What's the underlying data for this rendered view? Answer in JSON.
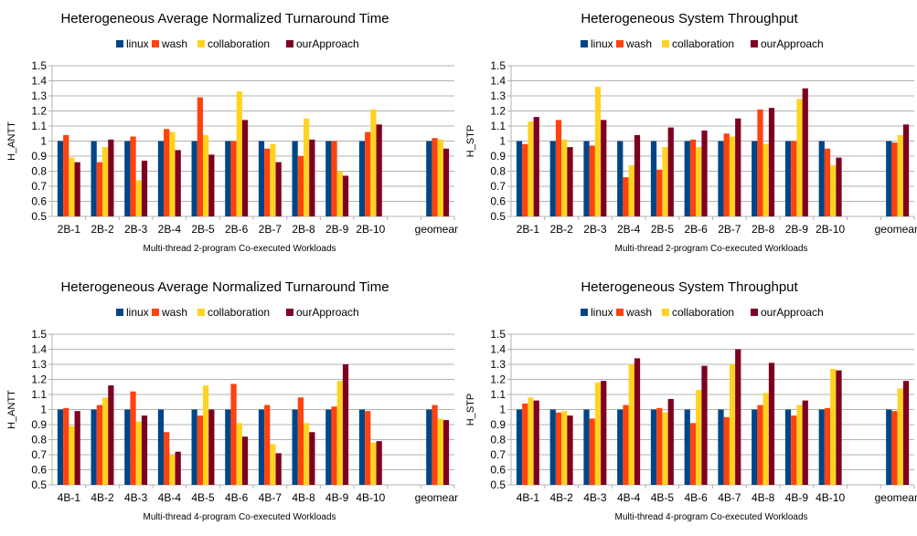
{
  "colors": {
    "linux": "#004586",
    "wash": "#ff420e",
    "collaboration": "#ffd320",
    "ourApproach": "#7e0021",
    "grid": "#b3b3b3",
    "axis": "#b3b3b3"
  },
  "chart_data": [
    {
      "type": "bar",
      "title": "Heterogeneous Average Normalized Turnaround Time",
      "xlabel": "Multi-thread 2-program Co-executed Workloads",
      "ylabel": "H_ANTT",
      "ylim": [
        0.5,
        1.5
      ],
      "yticks": [
        "0.5",
        "0.6",
        "0.7",
        "0.8",
        "0.9",
        "1",
        "1.1",
        "1.2",
        "1.3",
        "1.4",
        "1.5"
      ],
      "categories": [
        "2B-1",
        "2B-2",
        "2B-3",
        "2B-4",
        "2B-5",
        "2B-6",
        "2B-7",
        "2B-8",
        "2B-9",
        "2B-10",
        "",
        "geomean"
      ],
      "legend": "top",
      "grid": true,
      "series": [
        {
          "name": "linux",
          "values": [
            1.0,
            1.0,
            1.0,
            1.0,
            1.0,
            1.0,
            1.0,
            1.0,
            1.0,
            1.0,
            null,
            1.0
          ]
        },
        {
          "name": "wash",
          "values": [
            1.04,
            0.86,
            1.03,
            1.08,
            1.29,
            1.0,
            0.95,
            0.9,
            1.0,
            1.06,
            null,
            1.02
          ]
        },
        {
          "name": "collaboration",
          "values": [
            0.89,
            0.96,
            0.74,
            1.06,
            1.04,
            1.33,
            0.98,
            1.15,
            0.8,
            1.21,
            null,
            1.01
          ]
        },
        {
          "name": "ourApproach",
          "values": [
            0.86,
            1.01,
            0.87,
            0.94,
            0.91,
            1.14,
            0.86,
            1.01,
            0.77,
            1.11,
            null,
            0.95
          ]
        }
      ]
    },
    {
      "type": "bar",
      "title": "Heterogeneous System Throughput",
      "xlabel": "Multi-thread 2-program Co-executed Workloads",
      "ylabel": "H_STP",
      "ylim": [
        0.5,
        1.5
      ],
      "yticks": [
        "0.5",
        "0.6",
        "0.7",
        "0.8",
        "0.9",
        "1",
        "1.1",
        "1.2",
        "1.3",
        "1.4",
        "1.5"
      ],
      "categories": [
        "2B-1",
        "2B-2",
        "2B-3",
        "2B-4",
        "2B-5",
        "2B-6",
        "2B-7",
        "2B-8",
        "2B-9",
        "2B-10",
        "",
        "geomean"
      ],
      "legend": "top",
      "grid": true,
      "series": [
        {
          "name": "linux",
          "values": [
            1.0,
            1.0,
            1.0,
            1.0,
            1.0,
            1.0,
            1.0,
            1.0,
            1.0,
            1.0,
            null,
            1.0
          ]
        },
        {
          "name": "wash",
          "values": [
            0.98,
            1.14,
            0.97,
            0.76,
            0.81,
            1.01,
            1.05,
            1.21,
            1.0,
            0.95,
            null,
            0.99
          ]
        },
        {
          "name": "collaboration",
          "values": [
            1.13,
            1.01,
            1.36,
            0.84,
            0.96,
            0.96,
            1.03,
            0.98,
            1.28,
            0.84,
            null,
            1.04
          ]
        },
        {
          "name": "ourApproach",
          "values": [
            1.16,
            0.96,
            1.14,
            1.04,
            1.09,
            1.07,
            1.15,
            1.22,
            1.35,
            0.89,
            null,
            1.11
          ]
        }
      ]
    },
    {
      "type": "bar",
      "title": "Heterogeneous Average Normalized Turnaround Time",
      "xlabel": "Multi-thread 4-program Co-executed Workloads",
      "ylabel": "H_ANTT",
      "ylim": [
        0.5,
        1.5
      ],
      "yticks": [
        "0.5",
        "0.6",
        "0.7",
        "0.8",
        "0.9",
        "1",
        "1.1",
        "1.2",
        "1.3",
        "1.4",
        "1.5"
      ],
      "categories": [
        "4B-1",
        "4B-2",
        "4B-3",
        "4B-4",
        "4B-5",
        "4B-6",
        "4B-7",
        "4B-8",
        "4B-9",
        "4B-10",
        "",
        "geomean"
      ],
      "legend": "top",
      "grid": true,
      "series": [
        {
          "name": "linux",
          "values": [
            1.0,
            1.0,
            1.0,
            1.0,
            1.0,
            1.0,
            1.0,
            1.0,
            1.0,
            1.0,
            null,
            1.0
          ]
        },
        {
          "name": "wash",
          "values": [
            1.01,
            1.03,
            1.12,
            0.85,
            0.96,
            1.17,
            1.03,
            1.08,
            1.02,
            0.99,
            null,
            1.03
          ]
        },
        {
          "name": "collaboration",
          "values": [
            0.89,
            1.08,
            0.92,
            0.7,
            1.16,
            0.91,
            0.77,
            0.91,
            1.19,
            0.78,
            null,
            0.94
          ]
        },
        {
          "name": "ourApproach",
          "values": [
            0.99,
            1.16,
            0.96,
            0.72,
            1.0,
            0.82,
            0.71,
            0.85,
            1.3,
            0.79,
            null,
            0.93
          ]
        }
      ]
    },
    {
      "type": "bar",
      "title": "Heterogeneous System Throughput",
      "xlabel": "Multi-thread 4-program Co-executed Workloads",
      "ylabel": "H_STP",
      "ylim": [
        0.5,
        1.5
      ],
      "yticks": [
        "0.5",
        "0.6",
        "0.7",
        "0.8",
        "0.9",
        "1",
        "1.1",
        "1.2",
        "1.3",
        "1.4",
        "1.5"
      ],
      "categories": [
        "4B-1",
        "4B-2",
        "4B-3",
        "4B-4",
        "4B-5",
        "4B-6",
        "4B-7",
        "4B-8",
        "4B-9",
        "4B-10",
        "",
        "geomean"
      ],
      "legend": "top",
      "grid": true,
      "series": [
        {
          "name": "linux",
          "values": [
            1.0,
            1.0,
            1.0,
            1.0,
            1.0,
            1.0,
            1.0,
            1.0,
            1.0,
            1.0,
            null,
            1.0
          ]
        },
        {
          "name": "wash",
          "values": [
            1.04,
            0.98,
            0.94,
            1.03,
            1.01,
            0.91,
            0.95,
            1.03,
            0.96,
            1.01,
            null,
            0.99
          ]
        },
        {
          "name": "collaboration",
          "values": [
            1.08,
            0.99,
            1.18,
            1.3,
            0.98,
            1.13,
            1.3,
            1.11,
            1.03,
            1.27,
            null,
            1.14
          ]
        },
        {
          "name": "ourApproach",
          "values": [
            1.06,
            0.96,
            1.19,
            1.34,
            1.07,
            1.29,
            1.4,
            1.31,
            1.06,
            1.26,
            null,
            1.19
          ]
        }
      ]
    }
  ]
}
